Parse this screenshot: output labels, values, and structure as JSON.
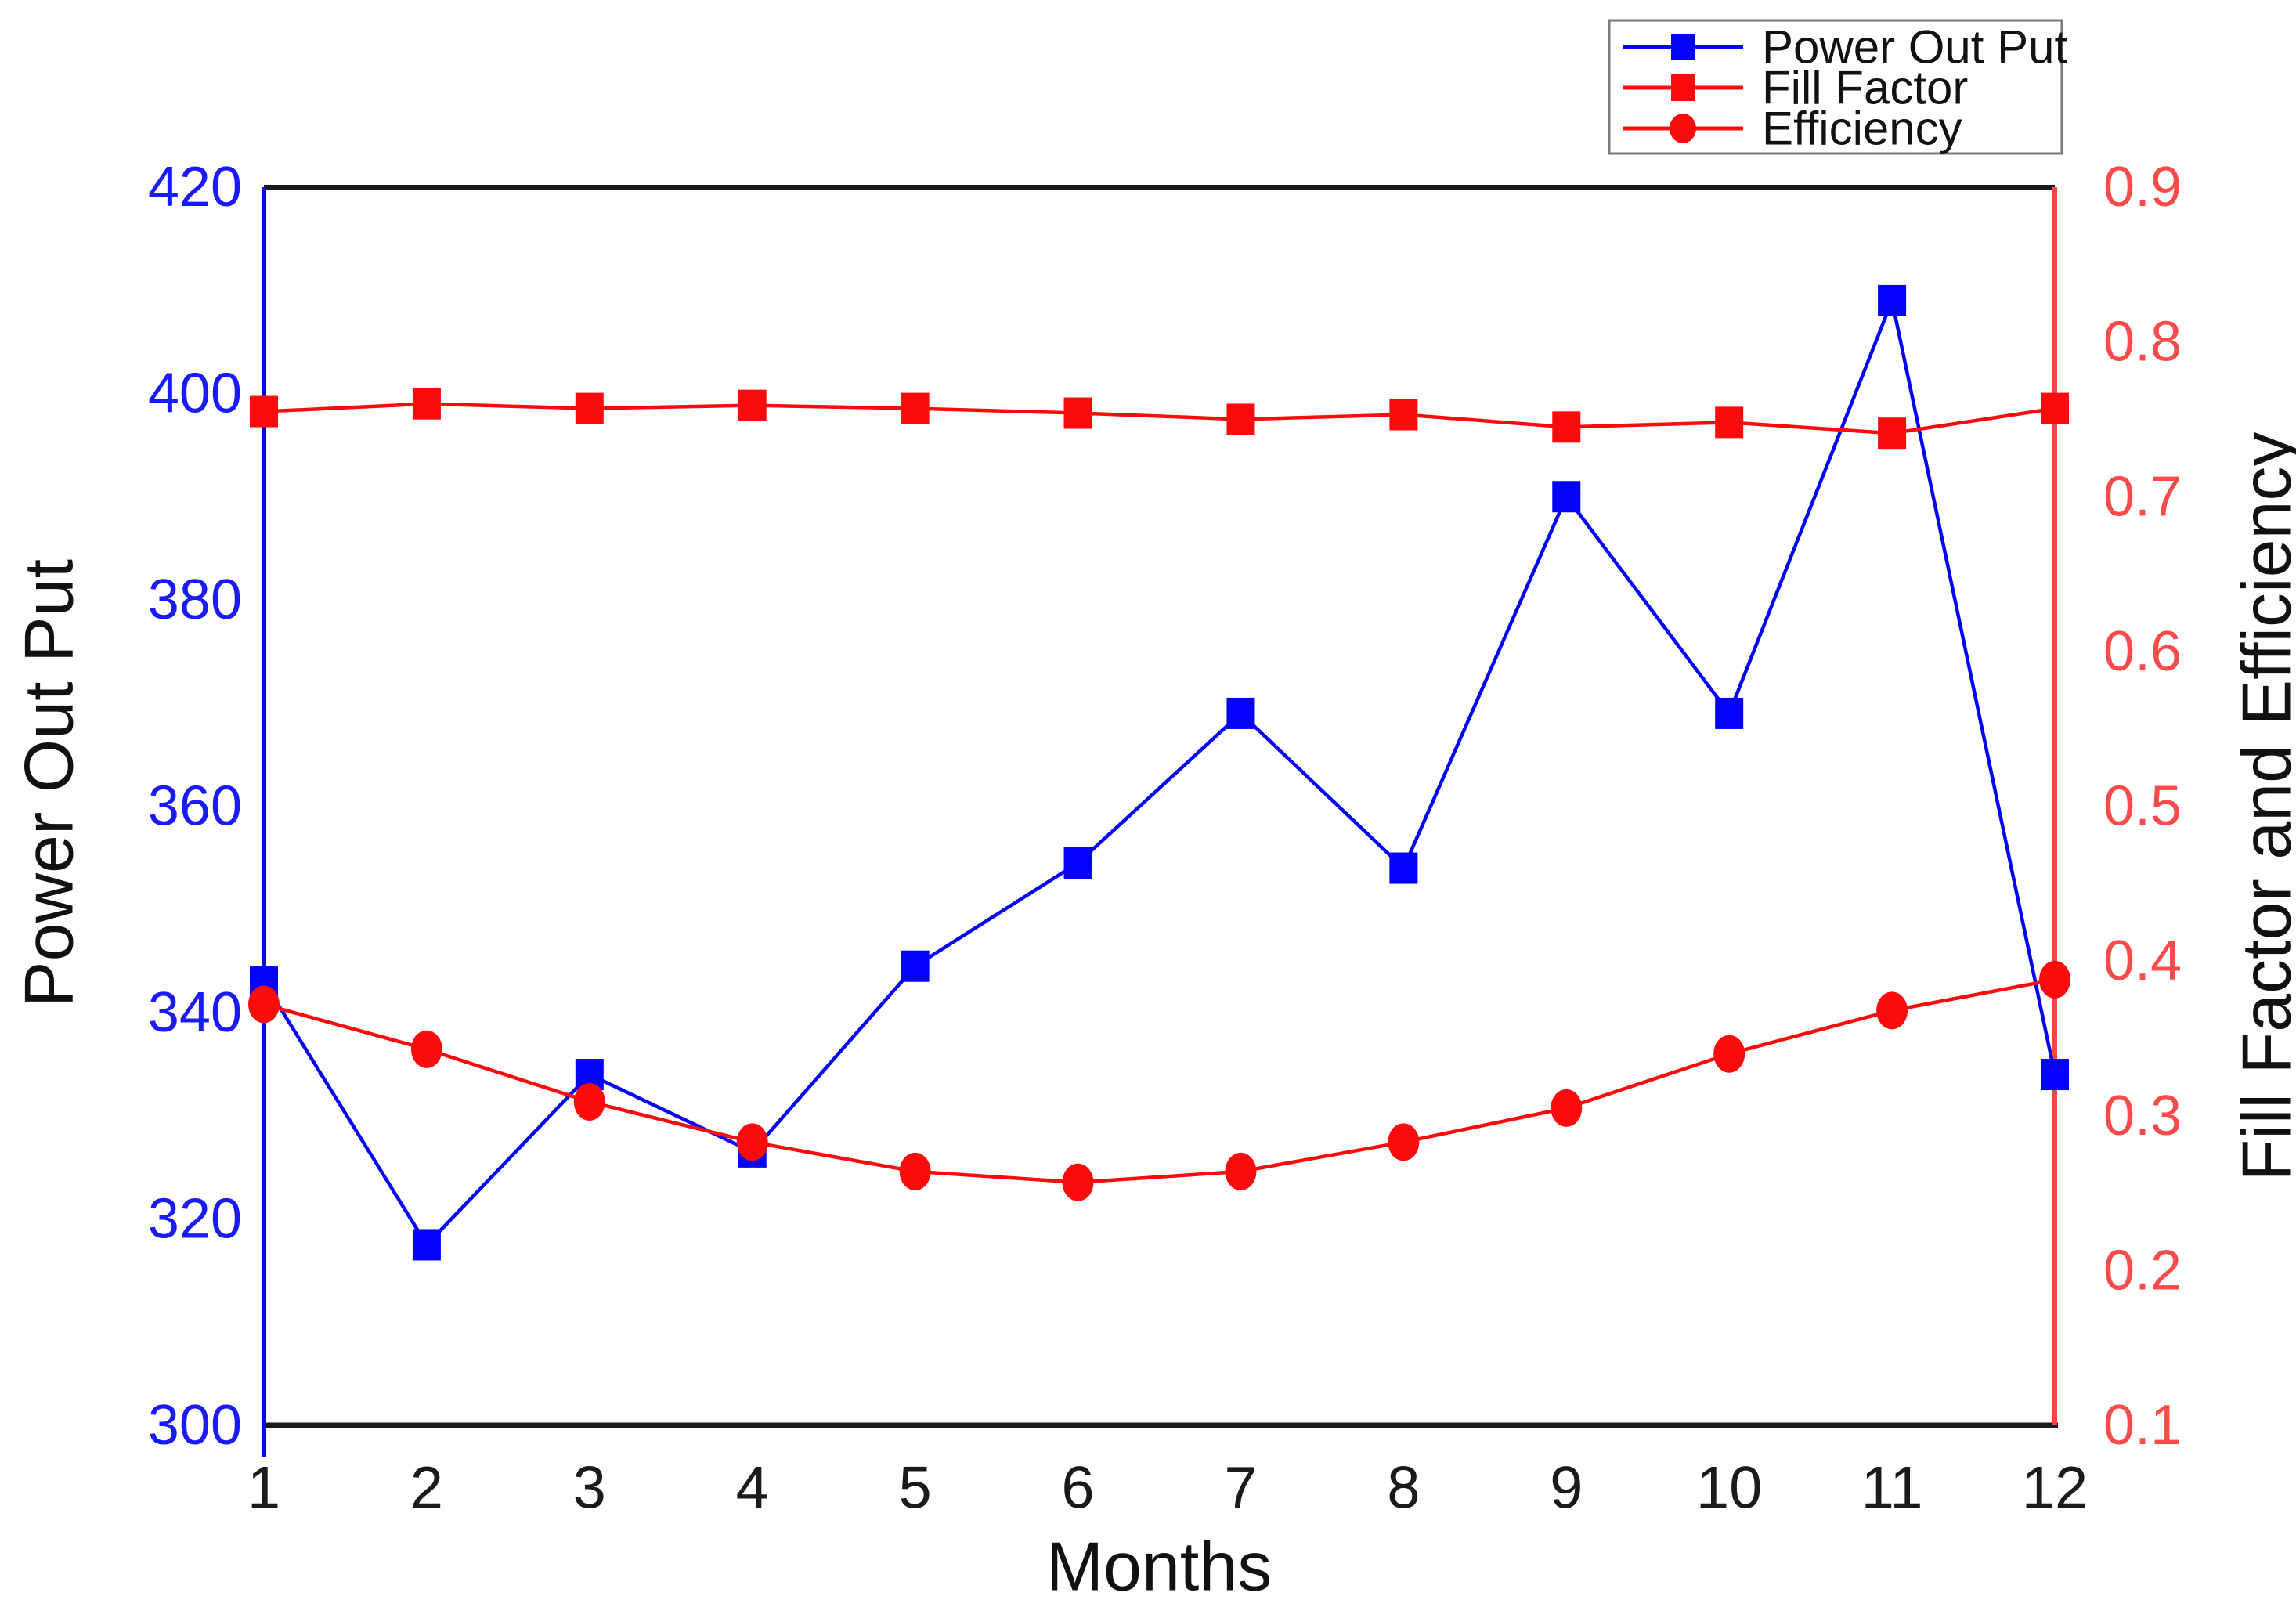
{
  "chart_data": {
    "type": "line",
    "title": "",
    "xlabel": "Months",
    "ylabel_left": "Power Out Put",
    "ylabel_right": "Fill Factor and Efficiency",
    "x": [
      1,
      2,
      3,
      4,
      5,
      6,
      7,
      8,
      9,
      10,
      11,
      12
    ],
    "x_tick_labels": [
      "1",
      "2",
      "3",
      "4",
      "5",
      "6",
      "7",
      "8",
      "9",
      "10",
      "11",
      "12"
    ],
    "left_axis": {
      "label": "Power Out Put",
      "min": 300,
      "max": 420,
      "ticks": [
        300,
        320,
        340,
        360,
        380,
        400,
        420
      ],
      "tick_color": "#1a1aff",
      "spine_color": "#0505f0"
    },
    "right_axis": {
      "label": "Fill Factor and Efficiency",
      "min": 0.1,
      "max": 0.9,
      "ticks": [
        0.1,
        0.2,
        0.3,
        0.4,
        0.5,
        0.6,
        0.7,
        0.8,
        0.9
      ],
      "tick_color": "#fb4b4b",
      "spine_color": "#f64545"
    },
    "bottom_axis": {
      "label": "Months",
      "tick_color": "#1a1a1a",
      "spine_color": "#1a1a1a"
    },
    "grid": false,
    "legend_position": "top-right",
    "series": [
      {
        "name": "Power Out Put",
        "axis": "left",
        "color": "#0202fa",
        "marker": "square",
        "values": [
          343,
          317.5,
          334,
          326.5,
          344.5,
          354.5,
          369,
          354,
          390,
          369,
          409,
          334
        ]
      },
      {
        "name": "Fill Factor",
        "axis": "right",
        "color": "#fb0b0b",
        "marker": "square",
        "values": [
          0.755,
          0.76,
          0.757,
          0.759,
          0.757,
          0.754,
          0.75,
          0.753,
          0.745,
          0.748,
          0.741,
          0.757
        ]
      },
      {
        "name": "Efficiency",
        "axis": "right",
        "color": "#fb0b0b",
        "marker": "circle",
        "values": [
          0.372,
          0.343,
          0.309,
          0.283,
          0.264,
          0.257,
          0.264,
          0.283,
          0.305,
          0.34,
          0.368,
          0.388
        ]
      }
    ]
  }
}
